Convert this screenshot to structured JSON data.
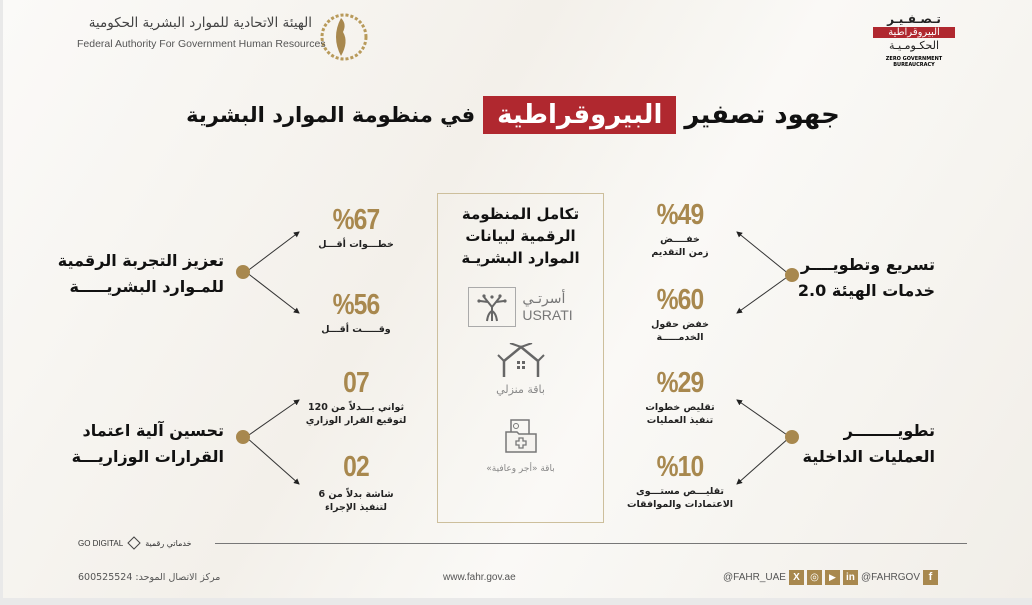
{
  "header": {
    "org_name_ar": "الهيئة الاتحادية للموارد البشرية الحكومية",
    "org_name_en": "Federal Authority For Government Human Resources",
    "zero_logo": {
      "line1": "تـصـفـيـر",
      "line2": "البيروقراطية",
      "line3": "الحكـومـيـة",
      "en": "ZERO GOVERNMENT BUREAUCRACY"
    }
  },
  "title": {
    "part1": "جهود تصفير",
    "highlight": "البيروقراطية",
    "part2": "في منظومة الموارد البشرية"
  },
  "colors": {
    "gold": "#a8884e",
    "red": "#b0282f"
  },
  "left": [
    {
      "heading": [
        "تعزيز التجربة الرقمية",
        "للمـوارد البشريـــــة"
      ],
      "stats": [
        {
          "value": "%67",
          "label": [
            "خطـــوات أقـــل"
          ]
        },
        {
          "value": "%56",
          "label": [
            "وقـــــت أقـــل"
          ]
        }
      ]
    },
    {
      "heading": [
        "تحسين آلية اعتماد",
        "القرارات الوزاريـــة"
      ],
      "stats": [
        {
          "value": "07",
          "label": [
            "ثواني بـــدلاً من 120",
            "لتوقيع القرار الوزاري"
          ]
        },
        {
          "value": "02",
          "label": [
            "شاشة بدلاً من 6",
            "لتنفيذ الإجراء"
          ]
        }
      ]
    }
  ],
  "right": [
    {
      "heading": [
        "تسريع وتطويــــر",
        "خدمات الهيئة 2.0"
      ],
      "stats": [
        {
          "value": "%49",
          "label": [
            "خفــــض",
            "زمن التقديم"
          ]
        },
        {
          "value": "%60",
          "label": [
            "خفض حقول",
            "الخدمـــــة"
          ]
        }
      ]
    },
    {
      "heading": [
        "تطويــــــــر",
        "العمليات الداخلية"
      ],
      "stats": [
        {
          "value": "%29",
          "label": [
            "تقليص خطوات",
            "تنفيذ العمليات"
          ]
        },
        {
          "value": "%10",
          "label": [
            "تقليـــص مستـــوى",
            "الاعتمادات والموافقات"
          ]
        }
      ]
    }
  ],
  "center": {
    "heading": [
      "تكامل المنظومة",
      "الرقمية لبيانات",
      "الموارد البشريـة"
    ],
    "usrati_ar": "أسرتـي",
    "usrati_en": "USRATI",
    "manzili": "باقة منزلي",
    "health": "باقة «أجر وعافية»"
  },
  "footer": {
    "go_digital": "GO DIGITAL",
    "go_digital_ar": "خدماتي رقمية",
    "call_center": "مركز الاتصال الموحد: 600525524",
    "website": "www.fahr.gov.ae",
    "handle_x": "@FAHR_UAE",
    "handle_fb": "@FAHRGOV"
  }
}
